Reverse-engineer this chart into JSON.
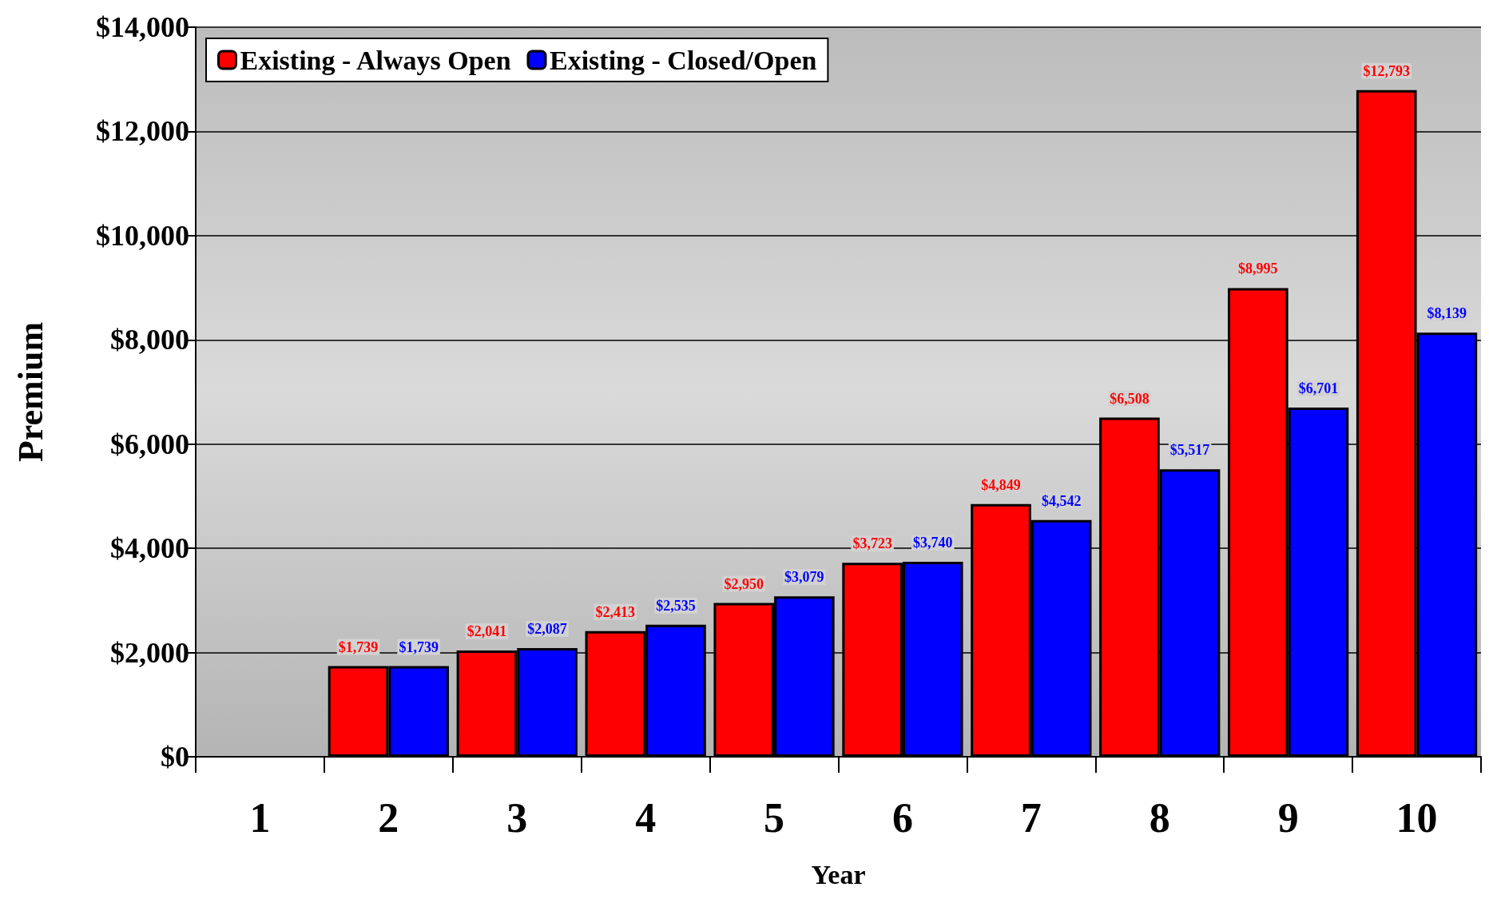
{
  "chart_data": {
    "type": "bar",
    "xlabel": "Year",
    "ylabel": "Premium",
    "categories": [
      "1",
      "2",
      "3",
      "4",
      "5",
      "6",
      "7",
      "8",
      "9",
      "10"
    ],
    "series": [
      {
        "name": "Existing - Always Open",
        "color": "#ff0000",
        "values": [
          null,
          1739,
          2041,
          2413,
          2950,
          3723,
          4849,
          6508,
          8995,
          12793
        ],
        "value_labels": [
          null,
          "$1,739",
          "$2,041",
          "$2,413",
          "$2,950",
          "$3,723",
          "$4,849",
          "$6,508",
          "$8,995",
          "$12,793"
        ]
      },
      {
        "name": "Existing - Closed/Open",
        "color": "#0000ff",
        "values": [
          null,
          1739,
          2087,
          2535,
          3079,
          3740,
          4542,
          5517,
          6701,
          8139
        ],
        "value_labels": [
          null,
          "$1,739",
          "$2,087",
          "$2,535",
          "$3,079",
          "$3,740",
          "$4,542",
          "$5,517",
          "$6,701",
          "$8,139"
        ]
      }
    ],
    "ylim": [
      0,
      14000
    ],
    "yticks": [
      {
        "value": 0,
        "label": "$0"
      },
      {
        "value": 2000,
        "label": "$2,000"
      },
      {
        "value": 4000,
        "label": "$4,000"
      },
      {
        "value": 6000,
        "label": "$6,000"
      },
      {
        "value": 8000,
        "label": "$8,000"
      },
      {
        "value": 10000,
        "label": "$10,000"
      },
      {
        "value": 12000,
        "label": "$12,000"
      },
      {
        "value": 14000,
        "label": "$14,000"
      }
    ],
    "grid": "y",
    "legend": "top left"
  }
}
